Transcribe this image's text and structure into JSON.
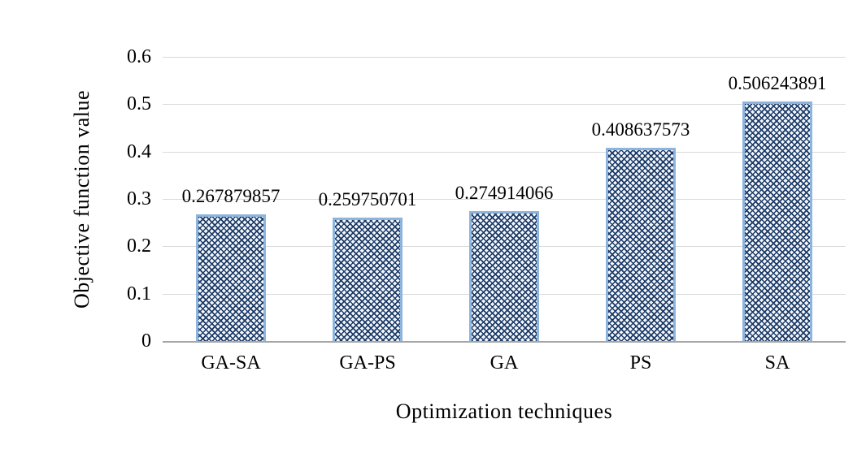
{
  "chart_data": {
    "type": "bar",
    "title": "",
    "xlabel": "Optimization techniques",
    "ylabel": "Objective function value",
    "categories": [
      "GA-SA",
      "GA-PS",
      "GA",
      "PS",
      "SA"
    ],
    "values": [
      0.267879857,
      0.259750701,
      0.274914066,
      0.408637573,
      0.506243891
    ],
    "data_labels": [
      "0.267879857",
      "0.259750701",
      "0.274914066",
      "0.408637573",
      "0.506243891"
    ],
    "ylim": [
      0,
      0.6
    ],
    "ytick_step": 0.1,
    "yticks": [
      "0",
      "0.1",
      "0.2",
      "0.3",
      "0.4",
      "0.5",
      "0.6"
    ],
    "grid": true,
    "legend": "none",
    "colors": {
      "bar_pattern": "#1b3a66",
      "bar_fill_bg": "#f3f6fb",
      "bar_border": "#8db4dc",
      "gridline": "#d9d9d9",
      "axis_line": "#a6a6a6",
      "text": "#000000",
      "background": "#ffffff"
    }
  }
}
